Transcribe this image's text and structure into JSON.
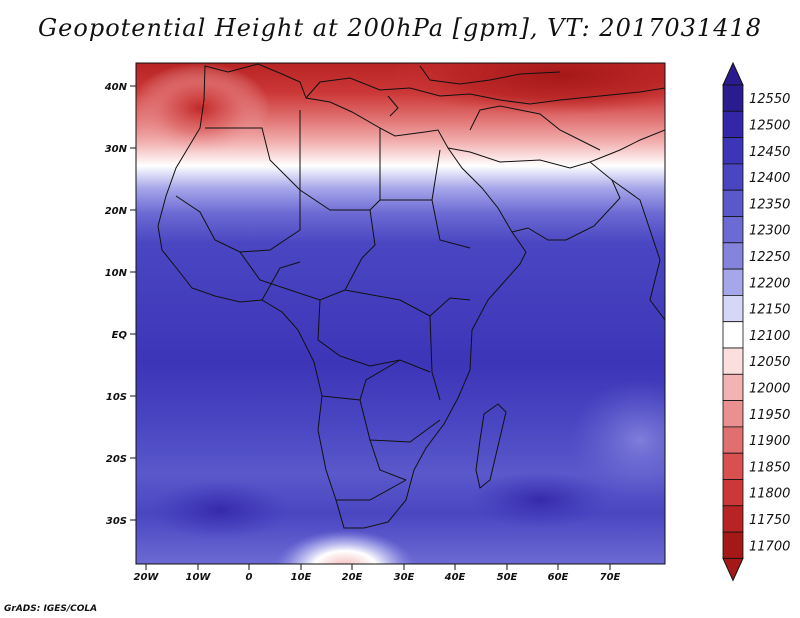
{
  "title": "Geopotential Height at 200hPa [gpm], VT: 2017031418",
  "credit": "GrADS: IGES/COLA",
  "map": {
    "lat_labels": [
      "40N",
      "30N",
      "20N",
      "10N",
      "EQ",
      "10S",
      "20S",
      "30S"
    ],
    "lon_labels": [
      "20W",
      "10W",
      "0",
      "10E",
      "20E",
      "30E",
      "40E",
      "50E",
      "60E",
      "70E"
    ],
    "lat_range": [
      -37,
      45
    ],
    "lon_range": [
      -23,
      80
    ]
  },
  "colorbar": {
    "levels": [
      "12550",
      "12500",
      "12450",
      "12400",
      "12350",
      "12300",
      "12250",
      "12200",
      "12150",
      "12100",
      "12050",
      "12000",
      "11950",
      "11900",
      "11850",
      "11800",
      "11750",
      "11700"
    ],
    "colors": [
      "#2a1b8f",
      "#3326a8",
      "#3d35b8",
      "#4a46c2",
      "#5a58ca",
      "#6c6ad3",
      "#8584dd",
      "#a6a6ea",
      "#d6d6f6",
      "#ffffff",
      "#fbdede",
      "#f3b3b3",
      "#ea9090",
      "#e07070",
      "#d85050",
      "#cc3838",
      "#b82424",
      "#a51818"
    ]
  }
}
